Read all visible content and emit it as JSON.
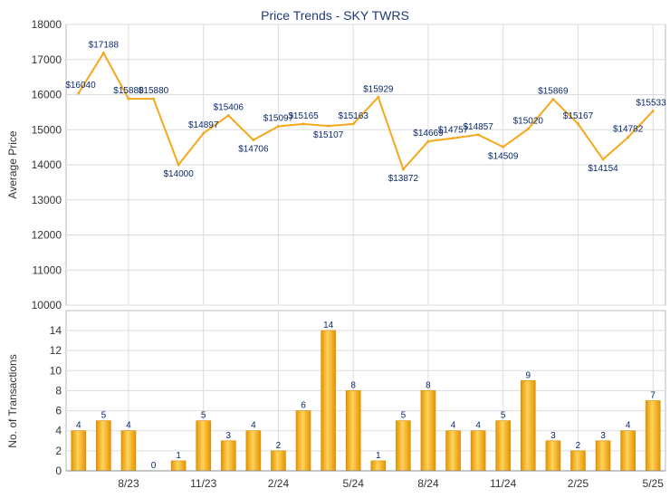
{
  "chart_data": [
    {
      "type": "line",
      "title": "Price Trends - SKY TWRS",
      "ylabel": "Average Price",
      "ylim": [
        10000,
        18000
      ],
      "yticks": [
        10000,
        11000,
        12000,
        13000,
        14000,
        15000,
        16000,
        17000,
        18000
      ],
      "grid": true,
      "series": [
        {
          "color": "#f5a81c",
          "values": [
            16040,
            17188,
            15880,
            15880,
            14000,
            14897,
            15406,
            14706,
            15097,
            15165,
            15107,
            15163,
            15929,
            13872,
            14669,
            14757,
            14857,
            14509,
            15020,
            15869,
            15167,
            14154,
            14782,
            15533
          ],
          "labels": [
            "$16040",
            "$17188",
            "$15880",
            "$15880",
            "$14000",
            "$14897",
            "$15406",
            "$14706",
            "$15097",
            "$15165",
            "$15107",
            "$15163",
            "$15929",
            "$13872",
            "$14669",
            "$14757",
            "$14857",
            "$14509",
            "$15020",
            "$15869",
            "$15167",
            "$14154",
            "$14782",
            "$15533"
          ]
        }
      ]
    },
    {
      "type": "bar",
      "ylabel": "No. of Transactions",
      "ylim": [
        0,
        14
      ],
      "yticks": [
        0,
        2,
        4,
        6,
        8,
        10,
        12,
        14
      ],
      "grid": true,
      "x_tick_labels": [
        "8/23",
        "11/23",
        "2/24",
        "5/24",
        "8/24",
        "11/24",
        "2/25",
        "5/25"
      ],
      "series": [
        {
          "color": "#f5a81c",
          "values": [
            4,
            5,
            4,
            0,
            1,
            5,
            3,
            4,
            2,
            6,
            14,
            8,
            1,
            5,
            8,
            4,
            4,
            5,
            9,
            3,
            2,
            3,
            4,
            7
          ]
        }
      ]
    }
  ],
  "colors": {
    "line": "#f5a81c",
    "bar_light": "#ffd35c",
    "bar_dark": "#e59400",
    "grid": "#dddddd",
    "label": "#0a2a6a"
  }
}
